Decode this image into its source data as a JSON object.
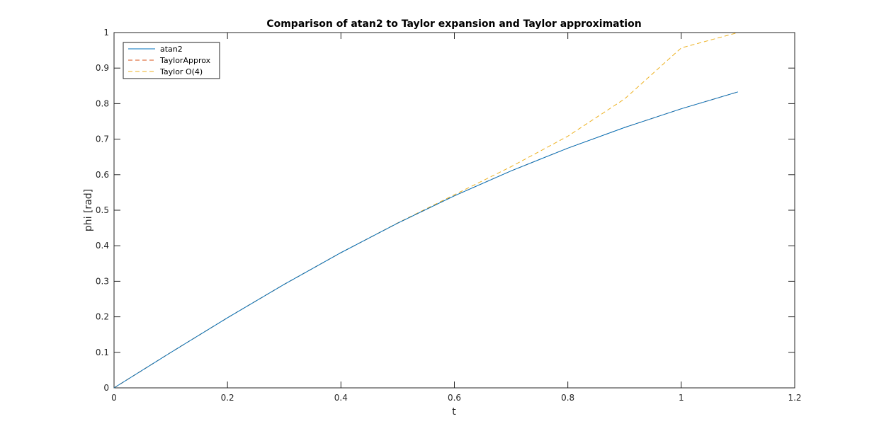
{
  "chart_data": {
    "type": "line",
    "title": "Comparison of atan2 to Taylor expansion and Taylor approximation",
    "xlabel": "t",
    "ylabel": "phi [rad]",
    "xlim": [
      0,
      1.2
    ],
    "ylim": [
      0,
      1
    ],
    "x_ticks": [
      "0",
      "0.2",
      "0.4",
      "0.6",
      "0.8",
      "1",
      "1.2"
    ],
    "y_ticks": [
      "0",
      "0.1",
      "0.2",
      "0.3",
      "0.4",
      "0.5",
      "0.6",
      "0.7",
      "0.8",
      "0.9",
      "1"
    ],
    "grid": false,
    "legend_position": "top-left",
    "x": [
      0,
      0.1,
      0.2,
      0.3,
      0.4,
      0.5,
      0.6,
      0.7,
      0.8,
      0.9,
      1.0,
      1.1
    ],
    "series": [
      {
        "name": "atan2",
        "style": "solid",
        "color": "#0072BD",
        "values": [
          0,
          0.0997,
          0.1974,
          0.2915,
          0.3805,
          0.4636,
          0.5404,
          0.6107,
          0.6747,
          0.7328,
          0.7854,
          0.833
        ]
      },
      {
        "name": "TaylorApprox",
        "style": "dashed",
        "color": "#D95319",
        "values": [
          0,
          0.0997,
          0.1974,
          0.2915,
          0.3805,
          0.4636,
          0.5404,
          0.6107,
          0.6747,
          0.7328,
          0.7854,
          0.833
        ]
      },
      {
        "name": "Taylor O(4)",
        "style": "dashed",
        "color": "#EDB120",
        "values": [
          0,
          0.0997,
          0.1974,
          0.2915,
          0.3805,
          0.4641,
          0.5435,
          0.6225,
          0.7084,
          0.8132,
          0.9567,
          1.0
        ]
      }
    ]
  }
}
